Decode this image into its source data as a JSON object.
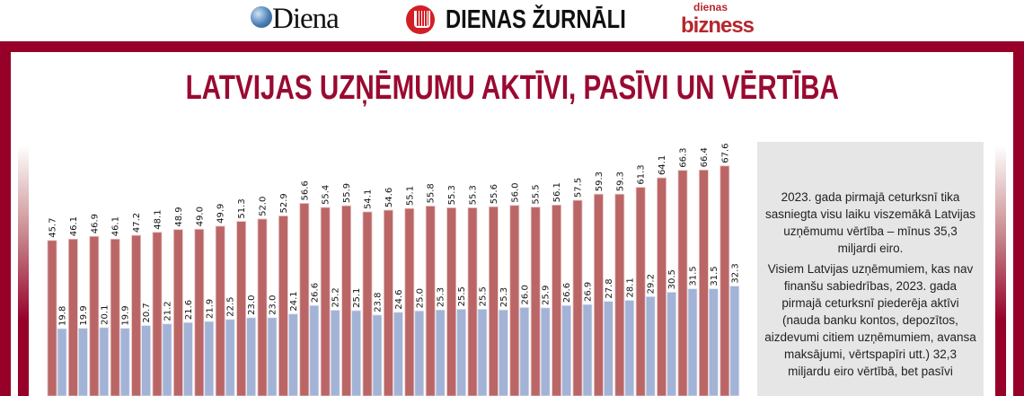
{
  "header": {
    "logos": [
      "Diena",
      "DIENAS ŽURNĀLI",
      "dienas",
      "bizness"
    ]
  },
  "title": "LATVIJAS UZŅĒMUMU AKTĪVI, PASĪVI UN VĒRTĪBA",
  "note": {
    "p1": "2023. gada pirmajā ceturksnī tika sasniegta visu laiku viszemākā Latvijas uzņēmumu vērtība – mīnus 35,3 miljardi eiro.",
    "p2": "Visiem Latvijas uzņēmumiem, kas nav finanšu sabiedrības, 2023. gada pirmajā ceturksnī piederēja aktīvi (nauda banku kontos, depozītos, aizdevumi citiem uzņēmumiem, avansa maksājumi, vērtspapīri utt.) 32,3 miljardu eiro vērtībā, bet pasīvi"
  },
  "colors": {
    "liabilities": "#bb6666",
    "assets": "#a3b3d6",
    "brand": "#960029"
  },
  "chart_data": {
    "type": "bar",
    "title": "LATVIJAS UZŅĒMUMU AKTĪVI, PASĪVI UN VĒRTĪBA",
    "categories_count": 33,
    "series": [
      {
        "name": "red",
        "values": [
          45.7,
          46.1,
          46.9,
          46.1,
          47.2,
          48.1,
          48.9,
          49.0,
          49.9,
          51.3,
          52.0,
          52.9,
          56.6,
          55.4,
          55.9,
          54.1,
          54.6,
          55.1,
          55.8,
          55.3,
          55.3,
          55.6,
          56.0,
          55.5,
          56.1,
          57.5,
          59.3,
          59.3,
          61.3,
          64.1,
          66.3,
          66.4,
          67.6
        ]
      },
      {
        "name": "blue",
        "values": [
          19.8,
          19.9,
          20.1,
          19.9,
          20.7,
          21.2,
          21.6,
          21.9,
          22.5,
          23.0,
          23.0,
          24.1,
          26.6,
          25.2,
          25.1,
          23.8,
          24.6,
          25.0,
          25.3,
          25.5,
          25.5,
          25.3,
          26.0,
          25.9,
          26.6,
          26.9,
          27.8,
          28.1,
          29.2,
          30.5,
          31.5,
          31.5,
          32.3
        ]
      }
    ],
    "grid": false
  }
}
